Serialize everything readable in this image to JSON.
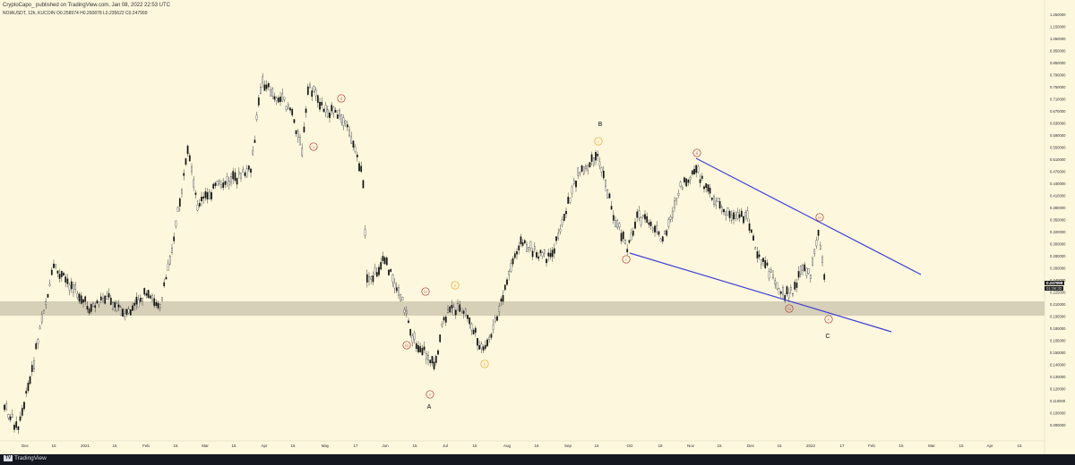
{
  "header": {
    "title": "CryptoCapo_ published on TradingView.com, Jan 08, 2022 22:53 UTC",
    "ohlc": "NOIAUSDT, 12h, KUCOIN   O0.258974  H0.260878  L0.235622  C0.247999"
  },
  "price_axis": {
    "labels": [
      "1.250000",
      "1.150000",
      "1.050000",
      "0.950000",
      "0.850000",
      "0.790000",
      "0.750000",
      "0.710000",
      "0.670000",
      "0.630000",
      "0.590000",
      "0.550000",
      "0.510000",
      "0.470000",
      "0.440000",
      "0.410000",
      "0.380000",
      "0.350000",
      "0.320000",
      "0.300000",
      "0.280000",
      "0.260000",
      "0.240000",
      "0.225000",
      "0.210000",
      "0.195000",
      "0.180000",
      "0.165000",
      "0.150000",
      "0.140000",
      "0.130000",
      "0.120000",
      "0.110000",
      "0.100000",
      "0.090000"
    ],
    "last_price": "0.247999",
    "countdown": "01:06:33"
  },
  "time_axis": {
    "labels": [
      "Dec",
      "15",
      "2021",
      "15",
      "Feb",
      "15",
      "Mar",
      "15",
      "Apr",
      "15",
      "May",
      "17",
      "Jun",
      "15",
      "Jul",
      "15",
      "Aug",
      "16",
      "Sep",
      "15",
      "Oct",
      "18",
      "Nov",
      "15",
      "Dec",
      "15",
      "2022",
      "17",
      "Feb",
      "15",
      "Mar",
      "15",
      "Apr",
      "15"
    ]
  },
  "wave_labels": {
    "big": [
      "A",
      "B",
      "C"
    ],
    "orange": [
      "a",
      "b",
      "c"
    ],
    "red": [
      "i",
      "ii",
      "iii",
      "iv",
      "v"
    ]
  },
  "colors": {
    "background": "#fdf7dd",
    "support_zone": "#d6d0b8",
    "trendline": "#4040d8",
    "red_label": "#b03030",
    "orange_label": "#f0a020"
  },
  "footer": {
    "brand": "TradingView"
  }
}
